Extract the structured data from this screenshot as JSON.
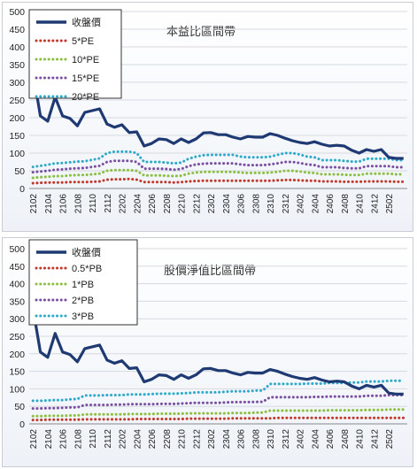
{
  "chart_data": [
    {
      "type": "line",
      "title": "本益比區間帶",
      "ylim": [
        0,
        500
      ],
      "yticks": [
        "0",
        "50",
        "100",
        "150",
        "200",
        "250",
        "300",
        "350",
        "400",
        "450",
        "500"
      ],
      "xtick_labels": [
        "2102",
        "2104",
        "2106",
        "2108",
        "2110",
        "2112",
        "2202",
        "2204",
        "2206",
        "2208",
        "2210",
        "2212",
        "2302",
        "2304",
        "2306",
        "2308",
        "2310",
        "2312",
        "2402",
        "2404",
        "2406",
        "2408",
        "2410",
        "2412",
        "2502"
      ],
      "legend_placement": "top-left",
      "series": [
        {
          "name": "收盤價",
          "color": "#1f3a73",
          "style": "solid",
          "values": [
            330,
            205,
            190,
            258,
            205,
            198,
            177,
            215,
            220,
            225,
            182,
            173,
            180,
            158,
            160,
            120,
            127,
            140,
            138,
            127,
            140,
            130,
            140,
            157,
            158,
            152,
            152,
            145,
            140,
            147,
            145,
            145,
            155,
            150,
            142,
            135,
            130,
            127,
            132,
            125,
            120,
            122,
            120,
            108,
            100,
            110,
            105,
            110,
            88,
            85,
            85
          ]
        },
        {
          "name": "5*PE",
          "color": "#c0392b",
          "style": "dotted",
          "values": [
            15,
            16,
            17,
            17,
            17,
            18,
            18,
            18,
            19,
            20,
            25,
            26,
            26,
            27,
            25,
            18,
            18,
            18,
            18,
            17,
            18,
            20,
            21,
            22,
            22,
            22,
            22,
            22,
            22,
            22,
            22,
            22,
            22,
            23,
            24,
            24,
            23,
            22,
            22,
            20,
            20,
            20,
            19,
            19,
            19,
            20,
            20,
            20,
            20,
            19,
            19
          ]
        },
        {
          "name": "10*PE",
          "color": "#8cbf3f",
          "style": "dotted",
          "values": [
            30,
            32,
            33,
            35,
            35,
            37,
            38,
            38,
            40,
            42,
            50,
            52,
            52,
            52,
            50,
            37,
            37,
            37,
            36,
            35,
            36,
            42,
            45,
            47,
            47,
            47,
            47,
            47,
            45,
            44,
            44,
            44,
            45,
            47,
            50,
            50,
            48,
            45,
            44,
            40,
            40,
            40,
            39,
            38,
            38,
            42,
            42,
            42,
            42,
            40,
            40
          ]
        },
        {
          "name": "15*PE",
          "color": "#7b4fa0",
          "style": "dotted",
          "values": [
            46,
            48,
            50,
            53,
            54,
            56,
            57,
            58,
            61,
            64,
            75,
            78,
            78,
            78,
            75,
            56,
            56,
            56,
            55,
            53,
            55,
            63,
            68,
            70,
            71,
            71,
            71,
            71,
            68,
            66,
            66,
            66,
            68,
            71,
            75,
            75,
            72,
            68,
            66,
            60,
            60,
            60,
            58,
            57,
            57,
            63,
            63,
            63,
            63,
            60,
            60
          ]
        },
        {
          "name": "20*PE",
          "color": "#2eaac8",
          "style": "dotted",
          "values": [
            61,
            64,
            67,
            71,
            72,
            74,
            76,
            77,
            81,
            85,
            100,
            104,
            104,
            104,
            100,
            75,
            75,
            75,
            73,
            71,
            73,
            84,
            90,
            94,
            95,
            95,
            95,
            95,
            90,
            88,
            88,
            88,
            90,
            95,
            100,
            100,
            96,
            90,
            88,
            80,
            80,
            80,
            78,
            76,
            76,
            84,
            84,
            84,
            84,
            80,
            80
          ]
        }
      ]
    },
    {
      "type": "line",
      "title": "股價淨值比區間帶",
      "ylim": [
        0,
        500
      ],
      "yticks": [
        "0",
        "50",
        "100",
        "150",
        "200",
        "250",
        "300",
        "350",
        "400",
        "450",
        "500"
      ],
      "xtick_labels": [
        "2102",
        "2104",
        "2106",
        "2108",
        "2110",
        "2112",
        "2202",
        "2204",
        "2206",
        "2208",
        "2210",
        "2212",
        "2302",
        "2304",
        "2306",
        "2308",
        "2310",
        "2312",
        "2402",
        "2404",
        "2406",
        "2408",
        "2410",
        "2412",
        "2502"
      ],
      "legend_placement": "top-left",
      "series": [
        {
          "name": "收盤價",
          "color": "#1f3a73",
          "style": "solid",
          "values": [
            330,
            205,
            190,
            258,
            205,
            198,
            177,
            215,
            220,
            225,
            182,
            173,
            180,
            158,
            160,
            120,
            127,
            140,
            138,
            127,
            140,
            130,
            140,
            157,
            158,
            152,
            152,
            145,
            140,
            147,
            145,
            145,
            155,
            150,
            142,
            135,
            130,
            127,
            132,
            125,
            120,
            122,
            120,
            108,
            100,
            110,
            105,
            110,
            88,
            85,
            85
          ]
        },
        {
          "name": "0.5*PB",
          "color": "#c0392b",
          "style": "dotted",
          "values": [
            11,
            11,
            12,
            12,
            12,
            12,
            12,
            13,
            13,
            13,
            13,
            13,
            13,
            13,
            14,
            14,
            14,
            14,
            14,
            14,
            14,
            15,
            15,
            15,
            15,
            15,
            15,
            16,
            16,
            16,
            16,
            16,
            16,
            17,
            17,
            17,
            17,
            17,
            17,
            17,
            17,
            17,
            17,
            17,
            17,
            17,
            17,
            17,
            17,
            17,
            17
          ]
        },
        {
          "name": "1*PB",
          "color": "#8cbf3f",
          "style": "dotted",
          "values": [
            22,
            22,
            23,
            23,
            23,
            24,
            24,
            27,
            27,
            27,
            27,
            27,
            27,
            28,
            28,
            28,
            28,
            29,
            29,
            29,
            29,
            30,
            30,
            30,
            30,
            30,
            30,
            31,
            31,
            31,
            32,
            32,
            38,
            38,
            38,
            38,
            38,
            38,
            38,
            38,
            39,
            39,
            39,
            39,
            39,
            40,
            40,
            40,
            41,
            41,
            41
          ]
        },
        {
          "name": "2*PB",
          "color": "#7b4fa0",
          "style": "dotted",
          "values": [
            44,
            44,
            45,
            45,
            46,
            47,
            47,
            54,
            54,
            54,
            54,
            55,
            55,
            56,
            56,
            56,
            56,
            57,
            57,
            57,
            58,
            59,
            60,
            60,
            60,
            60,
            61,
            62,
            62,
            62,
            63,
            63,
            76,
            76,
            76,
            76,
            76,
            76,
            77,
            77,
            78,
            78,
            78,
            78,
            78,
            80,
            80,
            80,
            82,
            82,
            82
          ]
        },
        {
          "name": "3*PB",
          "color": "#2eaac8",
          "style": "dotted",
          "values": [
            66,
            66,
            67,
            68,
            68,
            70,
            71,
            81,
            81,
            81,
            82,
            82,
            82,
            84,
            84,
            84,
            85,
            86,
            86,
            86,
            87,
            88,
            90,
            90,
            90,
            90,
            92,
            93,
            93,
            93,
            95,
            95,
            114,
            114,
            114,
            114,
            114,
            115,
            115,
            115,
            117,
            117,
            117,
            118,
            118,
            121,
            121,
            121,
            123,
            123,
            123
          ]
        }
      ]
    }
  ]
}
